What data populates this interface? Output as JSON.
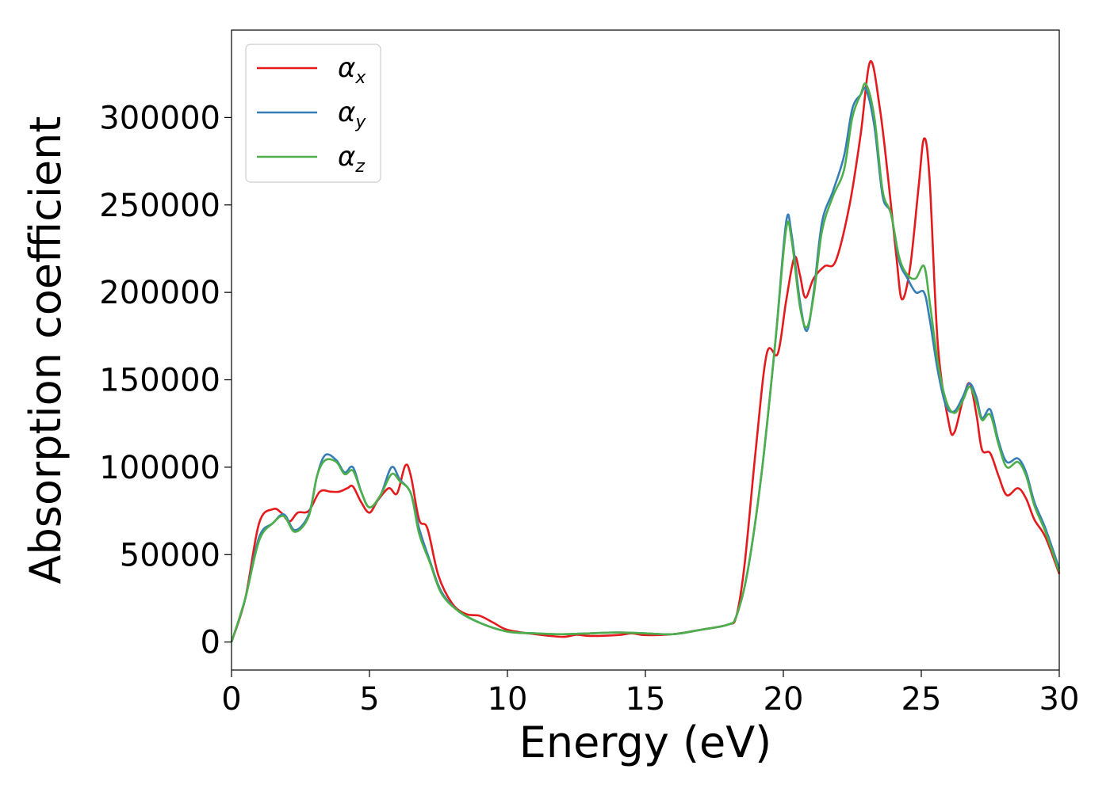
{
  "chart_data": {
    "type": "line",
    "title": "",
    "xlabel": "Energy (eV)",
    "ylabel": "Absorption coefficient",
    "xlim": [
      0,
      30
    ],
    "ylim": [
      -16000,
      350000
    ],
    "xticks": [
      0,
      5,
      10,
      15,
      20,
      25,
      30
    ],
    "xtick_labels": [
      "0",
      "5",
      "10",
      "15",
      "20",
      "25",
      "30"
    ],
    "yticks": [
      0,
      50000,
      100000,
      150000,
      200000,
      250000,
      300000
    ],
    "ytick_labels": [
      "0",
      "50000",
      "100000",
      "150000",
      "200000",
      "250000",
      "300000"
    ],
    "grid": false,
    "legend": "top-left",
    "series": [
      {
        "name": "α",
        "subscript": "x",
        "color": "#e41a1c",
        "points": [
          [
            0,
            0
          ],
          [
            0.5,
            25000
          ],
          [
            1,
            68000
          ],
          [
            1.5,
            76000
          ],
          [
            1.8,
            74000
          ],
          [
            2.1,
            69000
          ],
          [
            2.4,
            74000
          ],
          [
            2.8,
            75000
          ],
          [
            3.2,
            86000
          ],
          [
            3.6,
            86000
          ],
          [
            3.9,
            86000
          ],
          [
            4.2,
            88000
          ],
          [
            4.4,
            89000
          ],
          [
            4.7,
            80000
          ],
          [
            5,
            74000
          ],
          [
            5.3,
            81000
          ],
          [
            5.7,
            88000
          ],
          [
            6,
            85000
          ],
          [
            6.3,
            101000
          ],
          [
            6.5,
            95000
          ],
          [
            6.8,
            70000
          ],
          [
            7.1,
            65000
          ],
          [
            7.5,
            38000
          ],
          [
            8,
            22000
          ],
          [
            8.5,
            16000
          ],
          [
            9,
            15000
          ],
          [
            9.5,
            11000
          ],
          [
            10,
            7000
          ],
          [
            11,
            4500
          ],
          [
            12,
            3000
          ],
          [
            12.5,
            4200
          ],
          [
            13,
            3500
          ],
          [
            14,
            4000
          ],
          [
            14.5,
            5000
          ],
          [
            15,
            4000
          ],
          [
            16,
            4500
          ],
          [
            17,
            7000
          ],
          [
            18,
            10000
          ],
          [
            18.3,
            15000
          ],
          [
            18.6,
            45000
          ],
          [
            19,
            110000
          ],
          [
            19.4,
            165000
          ],
          [
            19.8,
            165000
          ],
          [
            20.1,
            195000
          ],
          [
            20.4,
            220000
          ],
          [
            20.6,
            210000
          ],
          [
            20.8,
            197000
          ],
          [
            21.1,
            208000
          ],
          [
            21.5,
            215000
          ],
          [
            21.9,
            218000
          ],
          [
            22.4,
            250000
          ],
          [
            22.8,
            290000
          ],
          [
            23.15,
            332000
          ],
          [
            23.5,
            305000
          ],
          [
            23.8,
            265000
          ],
          [
            24.1,
            220000
          ],
          [
            24.3,
            196000
          ],
          [
            24.6,
            215000
          ],
          [
            24.9,
            260000
          ],
          [
            25.1,
            288000
          ],
          [
            25.3,
            265000
          ],
          [
            25.6,
            170000
          ],
          [
            26.0,
            125000
          ],
          [
            26.2,
            120000
          ],
          [
            26.5,
            138000
          ],
          [
            26.75,
            148000
          ],
          [
            27,
            130000
          ],
          [
            27.2,
            110000
          ],
          [
            27.5,
            108000
          ],
          [
            27.8,
            95000
          ],
          [
            28.1,
            84000
          ],
          [
            28.5,
            88000
          ],
          [
            28.8,
            82000
          ],
          [
            29.1,
            70000
          ],
          [
            29.5,
            60000
          ],
          [
            30,
            39000
          ]
        ]
      },
      {
        "name": "α",
        "subscript": "y",
        "color": "#377eb8",
        "points": [
          [
            0,
            0
          ],
          [
            0.5,
            25000
          ],
          [
            1,
            60000
          ],
          [
            1.5,
            68000
          ],
          [
            1.9,
            73000
          ],
          [
            2.3,
            64000
          ],
          [
            2.8,
            73000
          ],
          [
            3.1,
            95000
          ],
          [
            3.4,
            107000
          ],
          [
            3.8,
            104000
          ],
          [
            4.1,
            97000
          ],
          [
            4.4,
            100000
          ],
          [
            4.7,
            86000
          ],
          [
            5,
            77000
          ],
          [
            5.4,
            84000
          ],
          [
            5.8,
            100000
          ],
          [
            6.1,
            93000
          ],
          [
            6.5,
            85000
          ],
          [
            6.8,
            65000
          ],
          [
            7.2,
            46000
          ],
          [
            7.6,
            29000
          ],
          [
            8.2,
            18000
          ],
          [
            9,
            11000
          ],
          [
            10,
            6000
          ],
          [
            11,
            5000
          ],
          [
            12,
            4500
          ],
          [
            13,
            5000
          ],
          [
            14,
            5500
          ],
          [
            15,
            5000
          ],
          [
            16,
            4500
          ],
          [
            17,
            7000
          ],
          [
            18,
            10000
          ],
          [
            18.3,
            15000
          ],
          [
            18.7,
            40000
          ],
          [
            19.2,
            95000
          ],
          [
            19.7,
            170000
          ],
          [
            20.1,
            240000
          ],
          [
            20.3,
            233000
          ],
          [
            20.6,
            195000
          ],
          [
            20.85,
            178000
          ],
          [
            21.1,
            200000
          ],
          [
            21.4,
            240000
          ],
          [
            21.8,
            258000
          ],
          [
            22.2,
            278000
          ],
          [
            22.5,
            305000
          ],
          [
            22.8,
            313000
          ],
          [
            23.0,
            316000
          ],
          [
            23.3,
            295000
          ],
          [
            23.6,
            255000
          ],
          [
            23.9,
            245000
          ],
          [
            24.2,
            218000
          ],
          [
            24.5,
            208000
          ],
          [
            24.8,
            200000
          ],
          [
            25.1,
            200000
          ],
          [
            25.3,
            185000
          ],
          [
            25.6,
            155000
          ],
          [
            25.9,
            135000
          ],
          [
            26.2,
            132000
          ],
          [
            26.5,
            140000
          ],
          [
            26.75,
            148000
          ],
          [
            27.0,
            140000
          ],
          [
            27.2,
            128000
          ],
          [
            27.5,
            133000
          ],
          [
            27.8,
            115000
          ],
          [
            28.1,
            103000
          ],
          [
            28.5,
            105000
          ],
          [
            28.8,
            97000
          ],
          [
            29.1,
            80000
          ],
          [
            29.5,
            65000
          ],
          [
            30,
            42000
          ]
        ]
      },
      {
        "name": "α",
        "subscript": "z",
        "color": "#4daf4a",
        "points": [
          [
            0,
            0
          ],
          [
            0.5,
            25000
          ],
          [
            1,
            58000
          ],
          [
            1.5,
            68000
          ],
          [
            1.9,
            72000
          ],
          [
            2.3,
            63000
          ],
          [
            2.8,
            72000
          ],
          [
            3.1,
            95000
          ],
          [
            3.4,
            104000
          ],
          [
            3.8,
            103000
          ],
          [
            4.1,
            96000
          ],
          [
            4.4,
            98000
          ],
          [
            4.7,
            86000
          ],
          [
            5,
            77000
          ],
          [
            5.4,
            84000
          ],
          [
            5.8,
            96000
          ],
          [
            6.1,
            92000
          ],
          [
            6.5,
            85000
          ],
          [
            6.8,
            62000
          ],
          [
            7.2,
            45000
          ],
          [
            7.6,
            28000
          ],
          [
            8.2,
            18000
          ],
          [
            9,
            11000
          ],
          [
            10,
            6000
          ],
          [
            11,
            5000
          ],
          [
            12,
            4500
          ],
          [
            13,
            5000
          ],
          [
            14,
            5500
          ],
          [
            15,
            5000
          ],
          [
            16,
            4500
          ],
          [
            17,
            7000
          ],
          [
            18,
            10000
          ],
          [
            18.3,
            15000
          ],
          [
            18.7,
            40000
          ],
          [
            19.2,
            95000
          ],
          [
            19.7,
            170000
          ],
          [
            20.1,
            236000
          ],
          [
            20.3,
            230000
          ],
          [
            20.6,
            192000
          ],
          [
            20.85,
            180000
          ],
          [
            21.1,
            198000
          ],
          [
            21.4,
            235000
          ],
          [
            21.8,
            255000
          ],
          [
            22.2,
            270000
          ],
          [
            22.5,
            300000
          ],
          [
            22.8,
            313000
          ],
          [
            23.0,
            319000
          ],
          [
            23.3,
            300000
          ],
          [
            23.6,
            258000
          ],
          [
            23.9,
            245000
          ],
          [
            24.2,
            220000
          ],
          [
            24.5,
            210000
          ],
          [
            24.8,
            208000
          ],
          [
            25.1,
            215000
          ],
          [
            25.3,
            195000
          ],
          [
            25.6,
            160000
          ],
          [
            25.9,
            138000
          ],
          [
            26.2,
            131000
          ],
          [
            26.5,
            138000
          ],
          [
            26.75,
            146000
          ],
          [
            27.0,
            137000
          ],
          [
            27.2,
            127000
          ],
          [
            27.5,
            130000
          ],
          [
            27.8,
            113000
          ],
          [
            28.1,
            100000
          ],
          [
            28.5,
            103000
          ],
          [
            28.8,
            95000
          ],
          [
            29.1,
            78000
          ],
          [
            29.5,
            63000
          ],
          [
            30,
            40000
          ]
        ]
      }
    ]
  }
}
